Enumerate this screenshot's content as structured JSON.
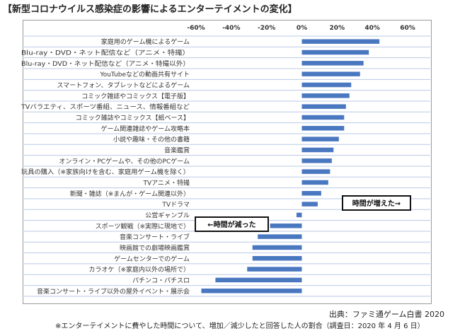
{
  "title": "【新型コロナウイルス感染症の影響によるエンターテイメントの変化】",
  "source": "出典：ファミ通ゲーム白書 2020",
  "footnote": "※エンターテイメントに費やした時間について、増加／減少したと回答した人の割合（調査日：2020 年 4 月 6 日）",
  "colors": {
    "bar": "#4a78c0",
    "grid": "#b9c9e6",
    "frame": "#9a9a9a"
  },
  "chart_data": {
    "type": "bar",
    "orientation": "horizontal",
    "title": "",
    "xlim": [
      -60,
      60
    ],
    "ticks": [
      -60,
      -40,
      -20,
      0,
      20,
      40,
      60
    ],
    "tick_labels": [
      "-60%",
      "-40%",
      "-20%",
      "0%",
      "20%",
      "40%",
      "60%"
    ],
    "categories": [
      "家庭用のゲーム機によるゲーム",
      "Blu-ray・DVD・ネット配信など（アニメ・特撮）",
      "Blu-ray・DVD・ネット配信など（アニメ・特撮以外）",
      "YouTubeなどの動画共有サイト",
      "スマートフォン、タブレットなどによるゲーム",
      "コミック雑誌やコミックス【電子版】",
      "TVバラエティ、スポーツ番組、ニュース、情報番組など",
      "コミック雑誌やコミックス【紙ベース】",
      "ゲーム関連雑誌やゲーム攻略本",
      "小説や趣味・その他の書籍",
      "音楽鑑賞",
      "オンライン・PCゲームや、その他のPCゲーム",
      "玩具の購入（※家族向けを含む、家庭用ゲーム機を除く）",
      "TVアニメ・特撮",
      "新聞・雑誌（※まんが・ゲーム関連以外）",
      "TVドラマ",
      "公営ギャンブル",
      "スポーツ観戦（※実際に現地で）",
      "音楽コンサート・ライブ",
      "映画館での劇場映画鑑賞",
      "ゲームセンターでのゲーム",
      "カラオケ（※家庭内以外の場所で）",
      "パチンコ・パチスロ",
      "音楽コンサート・ライブ以外の屋外イベント・展示会"
    ],
    "values": [
      44,
      38,
      35,
      33,
      28,
      27,
      25,
      24,
      24,
      21,
      18,
      17,
      16,
      15,
      11,
      9,
      -3,
      -18,
      -25,
      -28,
      -28,
      -31,
      -49,
      -57
    ],
    "annotations": {
      "increase": "時間が増えた→",
      "decrease": "←時間が減った"
    }
  }
}
